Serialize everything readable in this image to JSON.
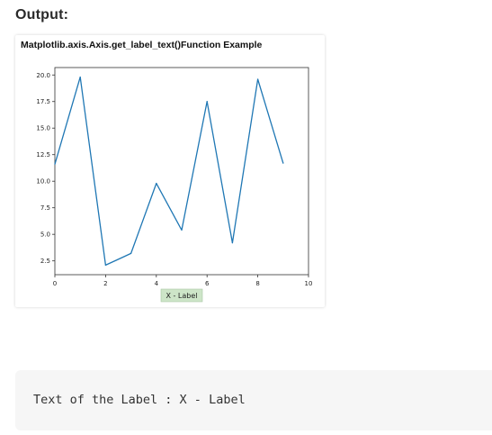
{
  "heading": "Output:",
  "chart_data": {
    "type": "line",
    "title": "Matplotlib.axis.Axis.get_label_text()Function Example",
    "xlabel": "X - Label",
    "ylabel": "",
    "xlim": [
      0,
      10
    ],
    "ylim": [
      1.2,
      20.7
    ],
    "xticks": [
      0,
      2,
      4,
      6,
      8,
      10
    ],
    "yticks": [
      2.5,
      5.0,
      7.5,
      10.0,
      12.5,
      15.0,
      17.5,
      20.0
    ],
    "xtick_labels": [
      "0",
      "2",
      "4",
      "6",
      "8",
      "10"
    ],
    "ytick_labels": [
      "2.5",
      "5.0",
      "7.5",
      "10.0",
      "12.5",
      "15.0",
      "17.5",
      "20.0"
    ],
    "grid": false,
    "series": [
      {
        "x": [
          0,
          1,
          2,
          3,
          4,
          5,
          6,
          7,
          8,
          9
        ],
        "y": [
          11.6,
          19.8,
          2.1,
          3.2,
          9.8,
          5.4,
          17.5,
          4.2,
          19.6,
          11.7
        ],
        "color": "#1f77b4"
      }
    ],
    "xlabel_box_color": "#cde5c8"
  },
  "result": {
    "text": "Text of the Label : X - Label"
  }
}
